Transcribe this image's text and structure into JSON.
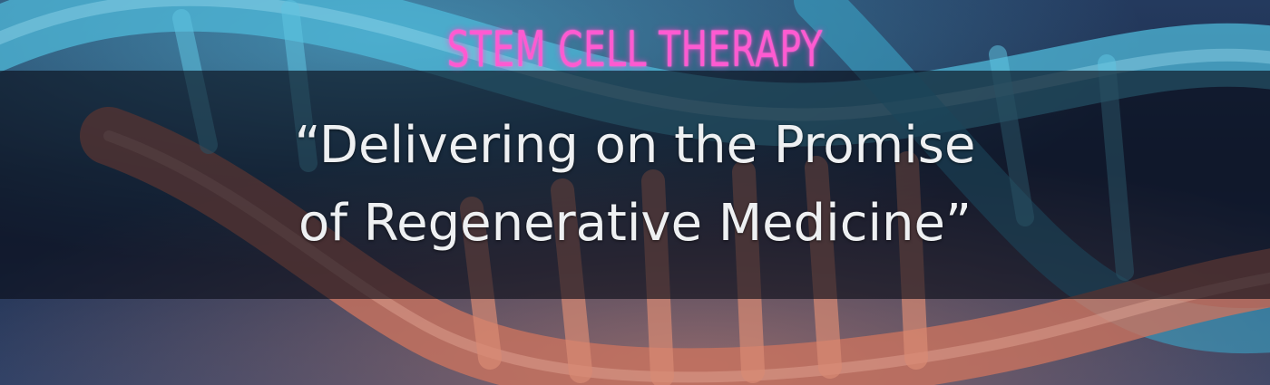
{
  "banner": {
    "headline": "STEM CELL THERAPY",
    "quote_line_1": "“Delivering on the Promise",
    "quote_line_2": "of Regenerative Medicine”",
    "background_image": "dna-helix-illustration",
    "colors": {
      "headline": "#ff5ad1",
      "quote": "#eef0f2",
      "band": "#080c16",
      "helix_blue": "#4fb8d8",
      "helix_red": "#c9735f"
    }
  }
}
